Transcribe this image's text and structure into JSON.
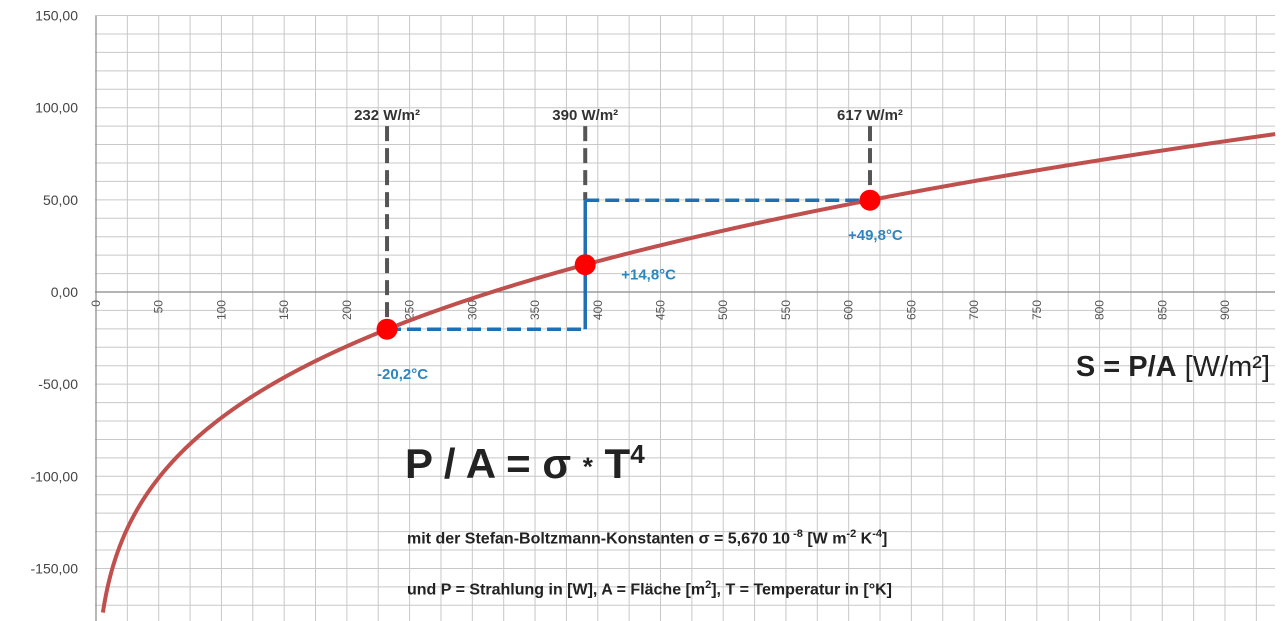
{
  "chart_data": {
    "type": "line",
    "xlabel_formula": "S = P/A",
    "xlabel_unit": "[W/m²]",
    "xlim": [
      0,
      940
    ],
    "ylim": [
      -175,
      150
    ],
    "x_ticks": [
      0,
      50,
      100,
      150,
      200,
      250,
      300,
      350,
      400,
      450,
      500,
      550,
      600,
      650,
      700,
      750,
      800,
      850,
      900
    ],
    "y_ticks": [
      {
        "value": 150,
        "label": "150,00"
      },
      {
        "value": 100,
        "label": "100,00"
      },
      {
        "value": 50,
        "label": "50,00"
      },
      {
        "value": 0,
        "label": "0,00"
      },
      {
        "value": -50,
        "label": "-50,00"
      },
      {
        "value": -100,
        "label": "-100,00"
      },
      {
        "value": -150,
        "label": "-150,00"
      }
    ],
    "series": [
      {
        "color": "#c0504d",
        "function": "stefan_boltzmann_celsius"
      }
    ],
    "points": [
      {
        "x": 232,
        "y": -20.2,
        "label": "-20,2°C",
        "vline_label": "232 W/m²"
      },
      {
        "x": 390,
        "y": 14.8,
        "label": "+14,8°C",
        "vline_label": "390 W/m²"
      },
      {
        "x": 617,
        "y": 49.8,
        "label": "+49,8°C",
        "vline_label": "617 W/m²"
      }
    ],
    "grid": true
  },
  "annotations": {
    "formula_lhs": "P / A = σ",
    "formula_star": "*",
    "formula_rhs": "T",
    "formula_exp": "4",
    "note1_a": "mit  der Stefan-Boltzmann-Konstanten  σ = 5,670 10",
    "note1_exp1": " -8",
    "note1_b": " [W m",
    "note1_exp2": "-2",
    "note1_c": " K",
    "note1_exp3": "-4",
    "note1_d": "]",
    "note2_a": "und P = Strahlung in [W], A = Fläche [m",
    "note2_exp": "2",
    "note2_b": "],  T = Temperatur in [°K]"
  },
  "colors": {
    "curve": "#c0504d",
    "marker": "#ff0000",
    "dashed_blue": "#1f6fb5",
    "dashed_gray": "#555555",
    "grid": "#c8c8c8",
    "temp_label": "#2e86c1"
  }
}
